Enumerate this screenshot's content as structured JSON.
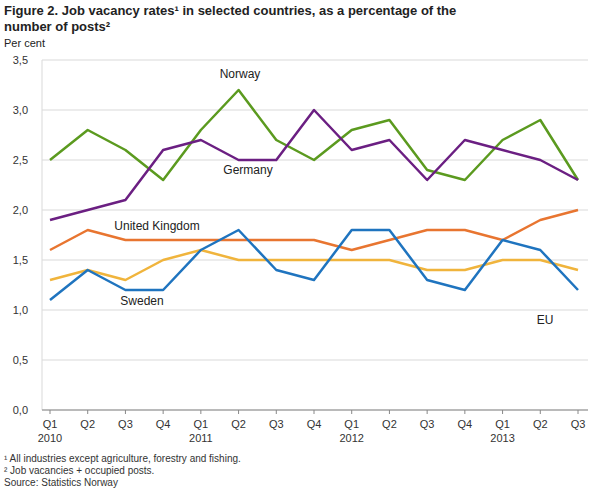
{
  "chart_data": {
    "type": "line",
    "title": "Figure 2. Job vacancy rates¹  in selected countries, as a percentage of the\nnumber of posts²",
    "y_label": "Per cent",
    "notes": [
      "¹ All industries except agriculture, forestry and fishing.",
      "² Job vacancies + occupied posts.",
      "Source: Statistics Norway"
    ],
    "categories": [
      "Q1\n2010",
      "Q2",
      "Q3",
      "Q4",
      "Q1\n2011",
      "Q2",
      "Q3",
      "Q4",
      "Q1\n2012",
      "Q2",
      "Q3",
      "Q4",
      "Q1\n2013",
      "Q2",
      "Q3"
    ],
    "series": [
      {
        "name": "Norway",
        "color": "#5b9a1f",
        "values": [
          2.5,
          2.8,
          2.6,
          2.3,
          2.8,
          3.2,
          2.7,
          2.5,
          2.8,
          2.9,
          2.4,
          2.3,
          2.7,
          2.9,
          2.3
        ]
      },
      {
        "name": "Germany",
        "color": "#6b1f82",
        "values": [
          1.9,
          2.0,
          2.1,
          2.6,
          2.7,
          2.5,
          2.5,
          3.0,
          2.6,
          2.7,
          2.3,
          2.7,
          2.6,
          2.5,
          2.3
        ]
      },
      {
        "name": "United Kingdom",
        "color": "#e87530",
        "values": [
          1.6,
          1.8,
          1.7,
          1.7,
          1.7,
          1.7,
          1.7,
          1.7,
          1.6,
          1.7,
          1.8,
          1.8,
          1.7,
          1.9,
          2.0
        ]
      },
      {
        "name": "EU",
        "color": "#f0b43c",
        "values": [
          1.3,
          1.4,
          1.3,
          1.5,
          1.6,
          1.5,
          1.5,
          1.5,
          1.5,
          1.5,
          1.4,
          1.4,
          1.5,
          1.5,
          1.4
        ]
      },
      {
        "name": "Sweden",
        "color": "#1f74bf",
        "values": [
          1.1,
          1.4,
          1.2,
          1.2,
          1.6,
          1.8,
          1.4,
          1.3,
          1.8,
          1.8,
          1.3,
          1.2,
          1.7,
          1.6,
          1.2
        ]
      }
    ],
    "ylim": [
      0,
      3.5
    ],
    "yticks": [
      {
        "value": 0,
        "label": "0,0"
      },
      {
        "value": 0.5,
        "label": "0,5"
      },
      {
        "value": 1,
        "label": "1,0"
      },
      {
        "value": 1.5,
        "label": "1,5"
      },
      {
        "value": 2,
        "label": "2,0"
      },
      {
        "value": 2.5,
        "label": "2,5"
      },
      {
        "value": 3,
        "label": "3,0"
      },
      {
        "value": 3.5,
        "label": "3,5"
      }
    ],
    "grid": true
  }
}
